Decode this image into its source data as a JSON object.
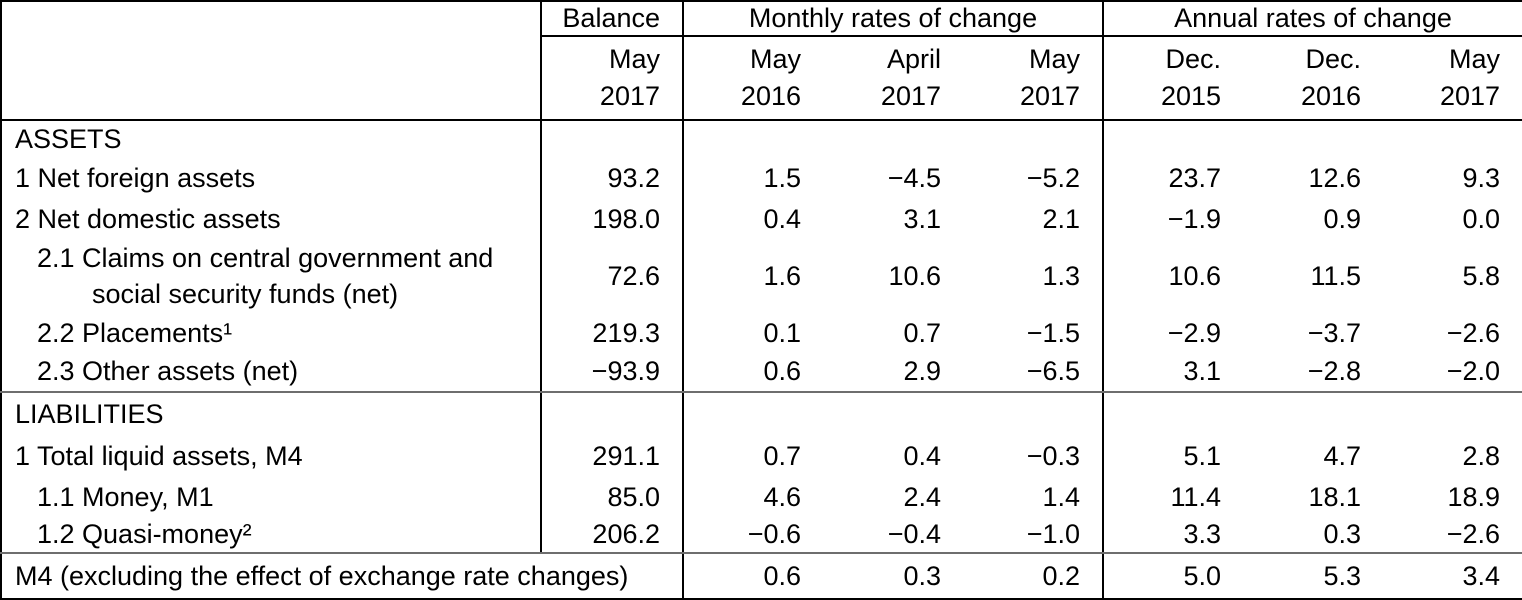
{
  "table": {
    "header": {
      "balance_label": "Balance",
      "monthly_label": "Monthly rates of change",
      "annual_label": "Annual rates of change",
      "balance_period": {
        "line1": "May",
        "line2": "2017"
      },
      "monthly_periods": [
        {
          "line1": "May",
          "line2": "2016"
        },
        {
          "line1": "April",
          "line2": "2017"
        },
        {
          "line1": "May",
          "line2": "2017"
        }
      ],
      "annual_periods": [
        {
          "line1": "Dec.",
          "line2": "2015"
        },
        {
          "line1": "Dec.",
          "line2": "2016"
        },
        {
          "line1": "May",
          "line2": "2017"
        }
      ]
    },
    "rows": [
      {
        "label": "ASSETS"
      },
      {
        "label": "1 Net foreign assets",
        "balance": "93.2",
        "monthly": [
          "1.5",
          "−4.5",
          "−5.2"
        ],
        "annual": [
          "23.7",
          "12.6",
          "9.3"
        ]
      },
      {
        "label": "2 Net domestic assets",
        "balance": "198.0",
        "monthly": [
          "0.4",
          "3.1",
          "2.1"
        ],
        "annual": [
          "−1.9",
          "0.9",
          "0.0"
        ]
      },
      {
        "label_line1": "2.1 Claims on central government and",
        "label_line2": "social security funds (net)",
        "balance": "72.6",
        "monthly": [
          "1.6",
          "10.6",
          "1.3"
        ],
        "annual": [
          "10.6",
          "11.5",
          "5.8"
        ]
      },
      {
        "label": "2.2 Placements¹",
        "balance": "219.3",
        "monthly": [
          "0.1",
          "0.7",
          "−1.5"
        ],
        "annual": [
          "−2.9",
          "−3.7",
          "−2.6"
        ]
      },
      {
        "label": "2.3 Other assets (net)",
        "balance": "−93.9",
        "monthly": [
          "0.6",
          "2.9",
          "−6.5"
        ],
        "annual": [
          "3.1",
          "−2.8",
          "−2.0"
        ]
      },
      {
        "label": "LIABILITIES"
      },
      {
        "label": "1 Total liquid assets, M4",
        "balance": "291.1",
        "monthly": [
          "0.7",
          "0.4",
          "−0.3"
        ],
        "annual": [
          "5.1",
          "4.7",
          "2.8"
        ]
      },
      {
        "label": "1.1 Money, M1",
        "balance": "85.0",
        "monthly": [
          "4.6",
          "2.4",
          "1.4"
        ],
        "annual": [
          "11.4",
          "18.1",
          "18.9"
        ]
      },
      {
        "label": "1.2 Quasi-money²",
        "balance": "206.2",
        "monthly": [
          "−0.6",
          "−0.4",
          "−1.0"
        ],
        "annual": [
          "3.3",
          "0.3",
          "−2.6"
        ]
      }
    ],
    "footer": {
      "label": "M4 (excluding the effect of exchange rate changes)",
      "monthly": [
        "0.6",
        "0.3",
        "0.2"
      ],
      "annual": [
        "5.0",
        "5.3",
        "3.4"
      ]
    }
  }
}
